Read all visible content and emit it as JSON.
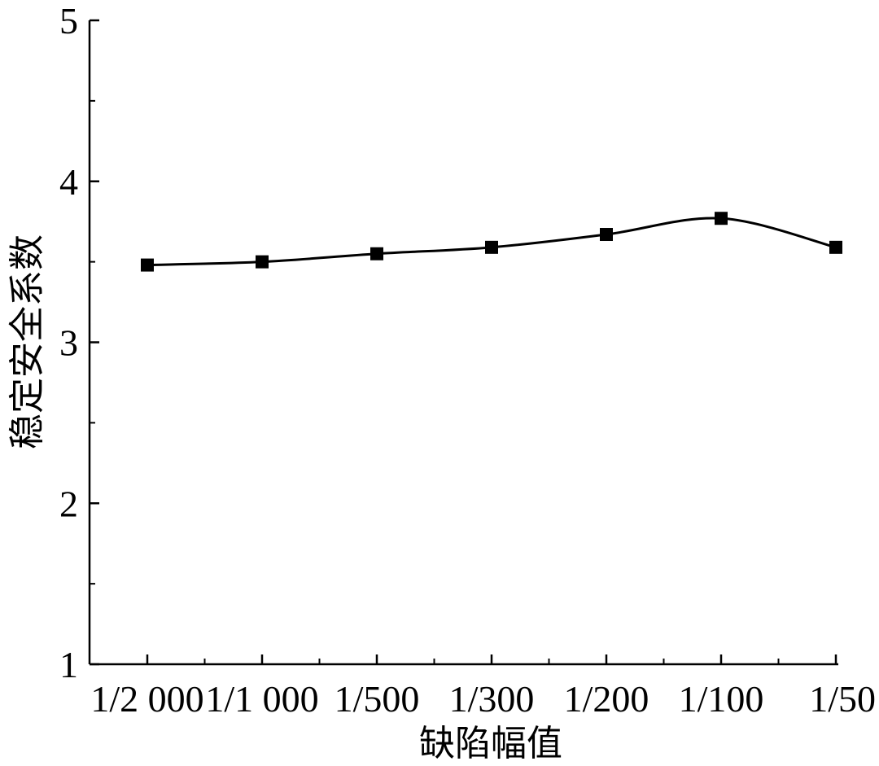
{
  "chart_data": {
    "type": "line",
    "categories": [
      "1/2 000",
      "1/1 000",
      "1/500",
      "1/300",
      "1/200",
      "1/100",
      "1/50"
    ],
    "series": [
      {
        "values": [
          3.48,
          3.5,
          3.55,
          3.59,
          3.67,
          3.77,
          3.59
        ]
      }
    ],
    "xlabel": "缺陷幅值",
    "ylabel": "稳定安全系数",
    "ylim": [
      1,
      5
    ],
    "yticks": [
      1,
      2,
      3,
      4,
      5
    ],
    "marker": "square",
    "smooth": true,
    "grid": false,
    "line_color": "#000000"
  }
}
